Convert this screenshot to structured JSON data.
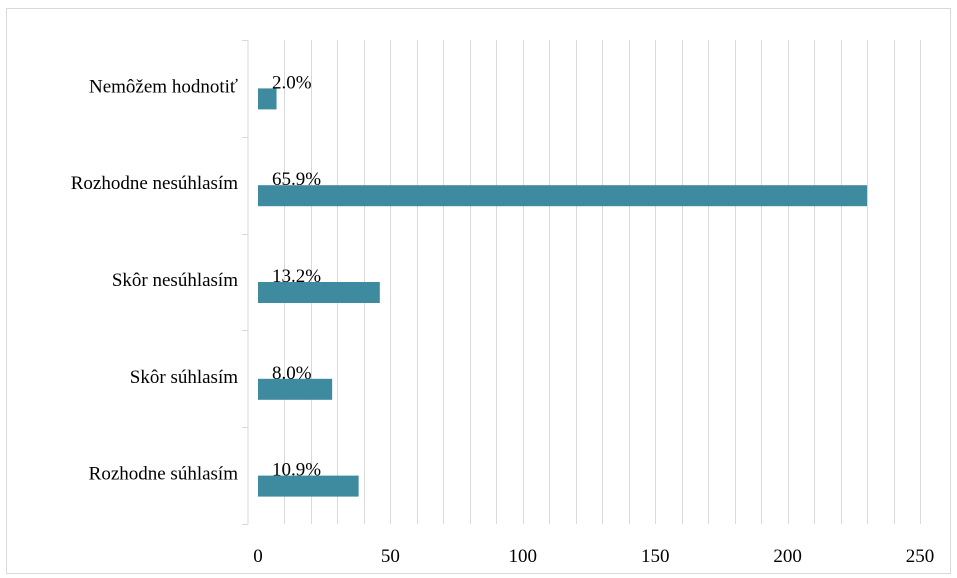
{
  "chart_data": {
    "type": "bar",
    "orientation": "horizontal",
    "categories": [
      "Nemôžem hodnotiť",
      "Rozhodne nesúhlasím",
      "Skôr nesúhlasím",
      "Skôr súhlasím",
      "Rozhodne súhlasím"
    ],
    "values": [
      7,
      230,
      46,
      28,
      38
    ],
    "data_labels": [
      "2.0%",
      "65.9%",
      "13.2%",
      "8.0%",
      "10.9%"
    ],
    "xlim": [
      0,
      250
    ],
    "x_ticks": [
      0,
      50,
      100,
      150,
      200,
      250
    ],
    "x_tick_labels": [
      "0",
      "50",
      "100",
      "150",
      "200",
      "250"
    ],
    "grid": true,
    "bar_color": "#3e8ba0",
    "grid_color": "#d9d9d9"
  }
}
